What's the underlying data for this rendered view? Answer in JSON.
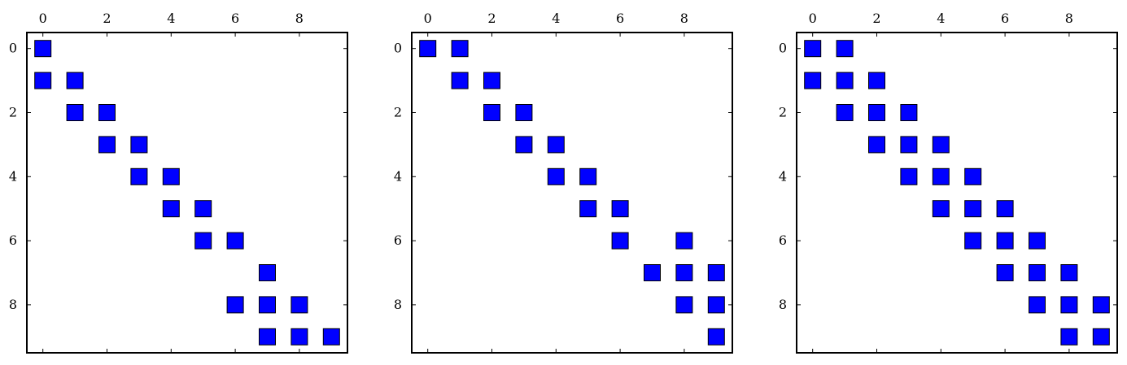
{
  "chart_data": [
    {
      "type": "scatter",
      "title": "",
      "xlabel": "",
      "ylabel": "",
      "xlim": [
        -0.5,
        9.5
      ],
      "ylim": [
        9.5,
        -0.5
      ],
      "x_ticks": [
        0,
        2,
        4,
        6,
        8
      ],
      "y_ticks": [
        0,
        2,
        4,
        6,
        8
      ],
      "x_tick_labels": [
        "0",
        "2",
        "4",
        "6",
        "8"
      ],
      "y_tick_labels": [
        "0",
        "2",
        "4",
        "6",
        "8"
      ],
      "x_axis_position": "top",
      "grid": false,
      "marker": "square",
      "marker_color": "#0000ff",
      "series": [
        {
          "points": [
            [
              0,
              0
            ],
            [
              0,
              1
            ],
            [
              1,
              1
            ],
            [
              1,
              2
            ],
            [
              2,
              2
            ],
            [
              2,
              3
            ],
            [
              3,
              3
            ],
            [
              3,
              4
            ],
            [
              4,
              4
            ],
            [
              4,
              5
            ],
            [
              5,
              5
            ],
            [
              5,
              6
            ],
            [
              6,
              6
            ],
            [
              7,
              7
            ],
            [
              6,
              8
            ],
            [
              7,
              8
            ],
            [
              8,
              8
            ],
            [
              7,
              9
            ],
            [
              8,
              9
            ],
            [
              9,
              9
            ]
          ]
        }
      ]
    },
    {
      "type": "scatter",
      "title": "",
      "xlabel": "",
      "ylabel": "",
      "xlim": [
        -0.5,
        9.5
      ],
      "ylim": [
        9.5,
        -0.5
      ],
      "x_ticks": [
        0,
        2,
        4,
        6,
        8
      ],
      "y_ticks": [
        0,
        2,
        4,
        6,
        8
      ],
      "x_tick_labels": [
        "0",
        "2",
        "4",
        "6",
        "8"
      ],
      "y_tick_labels": [
        "0",
        "2",
        "4",
        "6",
        "8"
      ],
      "x_axis_position": "top",
      "grid": false,
      "marker": "square",
      "marker_color": "#0000ff",
      "series": [
        {
          "points": [
            [
              0,
              0
            ],
            [
              1,
              0
            ],
            [
              1,
              1
            ],
            [
              2,
              1
            ],
            [
              2,
              2
            ],
            [
              3,
              2
            ],
            [
              3,
              3
            ],
            [
              4,
              3
            ],
            [
              4,
              4
            ],
            [
              5,
              4
            ],
            [
              5,
              5
            ],
            [
              6,
              5
            ],
            [
              6,
              6
            ],
            [
              8,
              6
            ],
            [
              7,
              7
            ],
            [
              8,
              7
            ],
            [
              9,
              7
            ],
            [
              8,
              8
            ],
            [
              9,
              8
            ],
            [
              9,
              9
            ]
          ]
        }
      ]
    },
    {
      "type": "scatter",
      "title": "",
      "xlabel": "",
      "ylabel": "",
      "xlim": [
        -0.5,
        9.5
      ],
      "ylim": [
        9.5,
        -0.5
      ],
      "x_ticks": [
        0,
        2,
        4,
        6,
        8
      ],
      "y_ticks": [
        0,
        2,
        4,
        6,
        8
      ],
      "x_tick_labels": [
        "0",
        "2",
        "4",
        "6",
        "8"
      ],
      "y_tick_labels": [
        "0",
        "2",
        "4",
        "6",
        "8"
      ],
      "x_axis_position": "top",
      "grid": false,
      "marker": "square",
      "marker_color": "#0000ff",
      "series": [
        {
          "points": [
            [
              0,
              0
            ],
            [
              1,
              0
            ],
            [
              0,
              1
            ],
            [
              1,
              1
            ],
            [
              2,
              1
            ],
            [
              1,
              2
            ],
            [
              2,
              2
            ],
            [
              3,
              2
            ],
            [
              2,
              3
            ],
            [
              3,
              3
            ],
            [
              4,
              3
            ],
            [
              3,
              4
            ],
            [
              4,
              4
            ],
            [
              5,
              4
            ],
            [
              4,
              5
            ],
            [
              5,
              5
            ],
            [
              6,
              5
            ],
            [
              5,
              6
            ],
            [
              6,
              6
            ],
            [
              7,
              6
            ],
            [
              6,
              7
            ],
            [
              7,
              7
            ],
            [
              8,
              7
            ],
            [
              7,
              8
            ],
            [
              8,
              8
            ],
            [
              9,
              8
            ],
            [
              8,
              9
            ],
            [
              9,
              9
            ]
          ]
        }
      ]
    }
  ]
}
